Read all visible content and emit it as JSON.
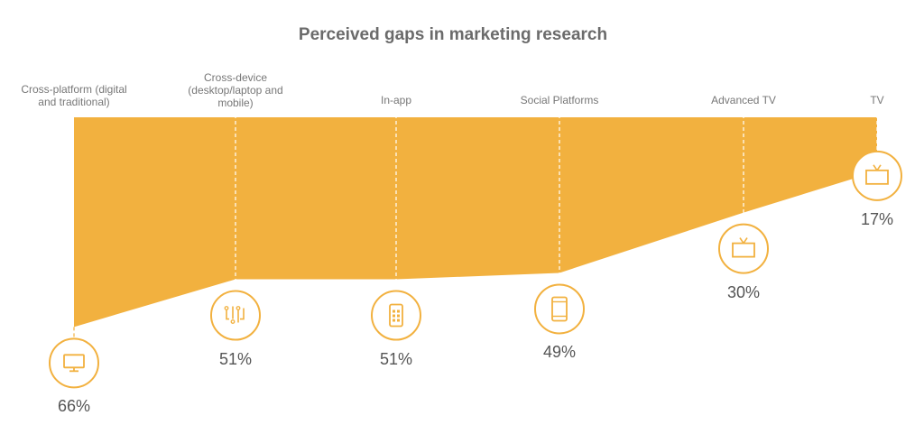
{
  "chart_data": {
    "type": "area",
    "title": "Perceived gaps in marketing research",
    "categories": [
      "Cross-platform (digital\nand traditional)",
      "Cross-device\n(desktop/laptop and\nmobile)",
      "In-app",
      "Social Platforms",
      "Advanced TV",
      "TV"
    ],
    "values": [
      66,
      51,
      51,
      49,
      30,
      17
    ],
    "value_labels": [
      "66%",
      "51%",
      "51%",
      "49%",
      "30%",
      "17%"
    ],
    "icons": [
      "monitor-icon",
      "devices-icon",
      "app-phone-icon",
      "smartphone-icon",
      "advanced-tv-icon",
      "tv-icon"
    ],
    "colors": {
      "area": "#f2b13f",
      "icon_ring": "#f2b13f",
      "icon_fill": "#ffffff"
    },
    "grid": false,
    "legend": "none"
  }
}
